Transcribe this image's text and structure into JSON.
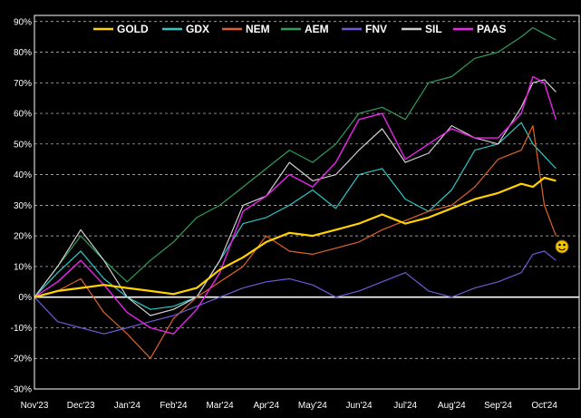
{
  "chart_data": {
    "type": "line",
    "title": "",
    "xlabel": "",
    "ylabel": "",
    "x_tick_labels": [
      "Nov'23",
      "Dec'23",
      "Jan'24",
      "Feb'24",
      "Mar'24",
      "Apr'24",
      "May'24",
      "Jun'24",
      "Jul'24",
      "Aug'24",
      "Sep'24",
      "Oct'24"
    ],
    "y_tick_labels": [
      "90%",
      "80%",
      "70%",
      "60%",
      "50%",
      "40%",
      "30%",
      "20%",
      "10%",
      "0%",
      "-10%",
      "-20%",
      "-30%"
    ],
    "ylim": [
      -30,
      92
    ],
    "xlim": [
      0,
      11.75
    ],
    "grid": true,
    "legend_position": "top",
    "y_unit": "%",
    "annotation_icon": "smiley-face-icon",
    "x_months": [
      0,
      0.5,
      1,
      1.5,
      2,
      2.5,
      3,
      3.5,
      4,
      4.5,
      5,
      5.5,
      6,
      6.5,
      7,
      7.5,
      8,
      8.5,
      9,
      9.5,
      10,
      10.5,
      10.75,
      11,
      11.25
    ],
    "series": [
      {
        "name": "GOLD",
        "color": "#ffd200",
        "width": 2.2,
        "values": [
          0,
          2,
          3,
          4,
          3,
          2,
          1,
          3,
          9,
          13,
          18,
          21,
          20,
          22,
          24,
          27,
          24,
          26,
          29,
          32,
          34,
          37,
          36,
          39,
          38
        ]
      },
      {
        "name": "GDX",
        "color": "#2ec8c8",
        "width": 1.2,
        "values": [
          0,
          8,
          15,
          6,
          0,
          -4,
          -3,
          0,
          12,
          24,
          26,
          30,
          35,
          29,
          40,
          42,
          32,
          28,
          35,
          48,
          50,
          57,
          50,
          46,
          42
        ]
      },
      {
        "name": "NEM",
        "color": "#e0622a",
        "width": 1.2,
        "values": [
          0,
          2,
          6,
          -5,
          -12,
          -20,
          -7,
          0,
          5,
          10,
          20,
          15,
          14,
          16,
          18,
          22,
          25,
          28,
          30,
          36,
          45,
          48,
          56,
          30,
          20
        ]
      },
      {
        "name": "AEM",
        "color": "#2e9e5a",
        "width": 1.2,
        "values": [
          0,
          10,
          20,
          12,
          5,
          12,
          18,
          26,
          30,
          36,
          42,
          48,
          44,
          50,
          60,
          62,
          58,
          70,
          72,
          78,
          80,
          85,
          88,
          86,
          84
        ]
      },
      {
        "name": "FNV",
        "color": "#6b5bd6",
        "width": 1.2,
        "values": [
          0,
          -8,
          -10,
          -12,
          -10,
          -8,
          -6,
          -3,
          0,
          3,
          5,
          6,
          4,
          0,
          2,
          5,
          8,
          2,
          0,
          3,
          5,
          8,
          14,
          15,
          12
        ]
      },
      {
        "name": "SIL",
        "color": "#d0d0d0",
        "width": 1.2,
        "values": [
          0,
          10,
          22,
          12,
          0,
          -6,
          -4,
          0,
          12,
          30,
          33,
          44,
          38,
          40,
          48,
          55,
          44,
          47,
          56,
          52,
          50,
          62,
          70,
          71,
          67
        ]
      },
      {
        "name": "PAAS",
        "color": "#ee22ee",
        "width": 1.4,
        "values": [
          0,
          5,
          12,
          4,
          -5,
          -10,
          -12,
          -4,
          8,
          28,
          33,
          40,
          36,
          44,
          58,
          60,
          45,
          50,
          55,
          52,
          52,
          60,
          72,
          70,
          58
        ]
      }
    ]
  }
}
